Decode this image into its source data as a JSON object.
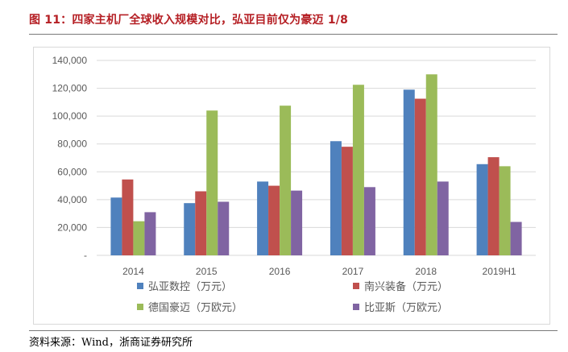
{
  "figure_title": "图 11：四家主机厂全球收入规模对比，弘亚目前仅为豪迈 1/8",
  "source": "资料来源：Wind，浙商证券研究所",
  "chart_data": {
    "type": "bar",
    "title": "",
    "xlabel": "",
    "ylabel": "",
    "ylim": [
      0,
      140000
    ],
    "yticks": [
      0,
      20000,
      40000,
      60000,
      80000,
      100000,
      120000,
      140000
    ],
    "ytick_labels": [
      "-",
      "20,000",
      "40,000",
      "60,000",
      "80,000",
      "100,000",
      "120,000",
      "140,000"
    ],
    "categories": [
      "2014",
      "2015",
      "2016",
      "2017",
      "2018",
      "2019H1"
    ],
    "grid": true,
    "legend_position": "bottom",
    "series": [
      {
        "name": "弘亚数控（万元）",
        "color": "#4f81bd",
        "values": [
          41500,
          37500,
          53000,
          82000,
          119000,
          65500
        ]
      },
      {
        "name": "南兴装备（万元）",
        "color": "#c0504d",
        "values": [
          54500,
          46000,
          50000,
          78000,
          112500,
          70500
        ]
      },
      {
        "name": "德国豪迈（万欧元）",
        "color": "#9bbb59",
        "values": [
          24500,
          104000,
          107500,
          122500,
          130000,
          64000
        ]
      },
      {
        "name": "比亚斯（万欧元）",
        "color": "#8064a2",
        "values": [
          31000,
          38500,
          46500,
          49000,
          53000,
          24000
        ]
      }
    ]
  }
}
